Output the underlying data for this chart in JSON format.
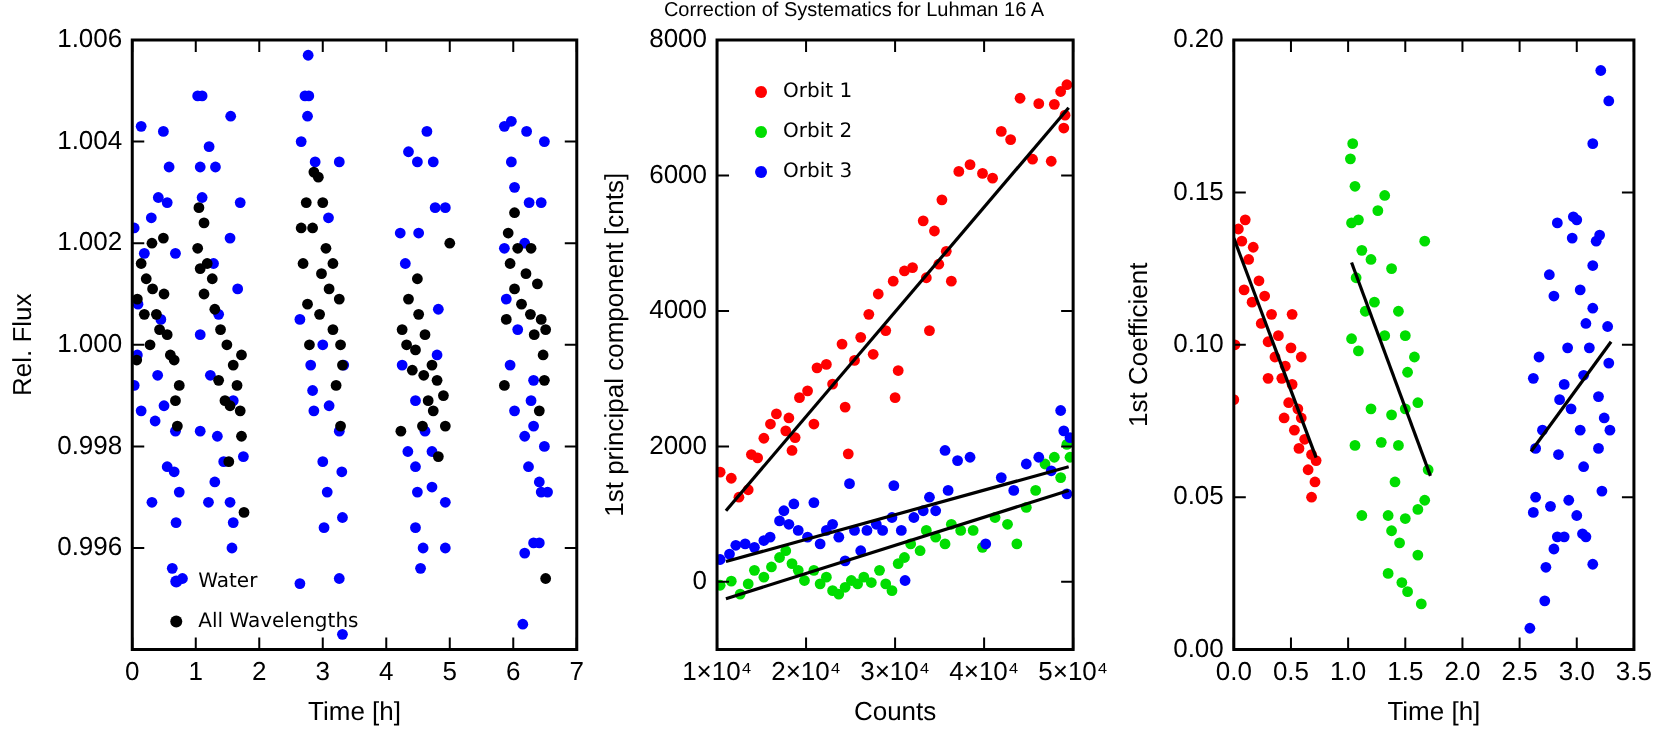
{
  "chart_data": [
    {
      "type": "scatter",
      "xlabel": "Time [h]",
      "ylabel": "Rel. Flux",
      "xlim": [
        0,
        7
      ],
      "xticks": [
        0,
        1,
        2,
        3,
        4,
        5,
        6,
        7
      ],
      "ylim": [
        0.994,
        1.006
      ],
      "yticks": [
        {
          "value": 0.996,
          "label": "0.996"
        },
        {
          "value": 0.998,
          "label": "0.998"
        },
        {
          "value": 1.0,
          "label": "1.000"
        },
        {
          "value": 1.002,
          "label": "1.002"
        },
        {
          "value": 1.004,
          "label": "1.004"
        },
        {
          "value": 1.006,
          "label": "1.006"
        }
      ],
      "grid": false,
      "legend": "bottom left",
      "marker": "circle",
      "series": [
        {
          "name": "Water",
          "color": "#0000ff",
          "x": [
            0.14,
            0.49,
            0.58,
            0.41,
            0.3,
            0.03,
            0.68,
            0.09,
            0.45,
            0.08,
            0.4,
            0.14,
            0.36,
            0.55,
            0.66,
            0.74,
            0.31,
            0.69,
            0.63,
            0.79,
            0.03,
            0.5,
            0.68,
            0.19,
            0.55,
            1.03,
            1.1,
            1.55,
            1.21,
            1.07,
            1.31,
            1.1,
            1.7,
            1.54,
            1.28,
            1.66,
            1.36,
            1.07,
            1.23,
            1.59,
            1.07,
            1.34,
            1.3,
            1.2,
            1.54,
            1.59,
            1.57,
            1.44,
            1.75,
            2.77,
            2.72,
            2.78,
            2.66,
            2.76,
            3.26,
            2.88,
            3.09,
            2.64,
            2.81,
            3.0,
            3.33,
            2.86,
            3.26,
            3.0,
            3.3,
            3.07,
            3.02,
            3.31,
            2.64,
            3.26,
            3.31,
            2.84,
            3.1,
            4.35,
            4.49,
            4.64,
            4.74,
            4.22,
            4.51,
            4.77,
            4.93,
            4.3,
            4.82,
            4.25,
            4.46,
            4.61,
            4.34,
            4.72,
            4.46,
            4.49,
            4.93,
            4.72,
            4.46,
            4.58,
            4.54,
            4.93,
            4.8,
            5.86,
            5.97,
            6.21,
            6.49,
            5.97,
            6.02,
            6.25,
            6.44,
            5.86,
            6.18,
            5.89,
            6.07,
            5.95,
            6.28,
            6.02,
            6.32,
            6.18,
            6.49,
            6.24,
            6.41,
            6.44,
            6.18,
            6.32,
            6.41,
            6.54,
            6.15,
            6.32
          ],
          "values": [
            1.0043,
            1.0042,
            1.0035,
            1.0029,
            1.0025,
            1.0023,
            1.0018,
            1.0008,
            1.0005,
            0.9998,
            0.9994,
            0.9987,
            0.9985,
            0.9976,
            0.9975,
            0.9971,
            0.9969,
            0.9965,
            0.9956,
            0.9954,
            0.9992,
            0.9988,
            0.9983,
            1.0018,
            1.0028,
            1.0049,
            1.0049,
            1.0045,
            1.0039,
            1.0035,
            1.0035,
            1.0029,
            1.0028,
            1.0021,
            1.0016,
            1.0011,
            1.0006,
            1.0002,
            0.9994,
            0.9989,
            0.9983,
            0.9982,
            0.9973,
            0.9969,
            0.9969,
            0.9965,
            0.996,
            0.9977,
            0.9978,
            1.0057,
            1.0049,
            1.0049,
            1.004,
            1.0045,
            1.0036,
            1.0036,
            1.0025,
            1.0005,
            0.9996,
            1.0,
            0.9996,
            0.9987,
            0.9983,
            0.9977,
            0.9975,
            0.9971,
            0.9964,
            0.9966,
            0.9953,
            0.9954,
            0.9943,
            0.9991,
            0.9988,
            1.0038,
            1.0036,
            1.0042,
            1.0036,
            1.0022,
            1.0022,
            1.0027,
            1.0027,
            1.0016,
            1.0007,
            0.9996,
            0.9989,
            0.9983,
            0.9979,
            0.9979,
            0.9976,
            0.9971,
            0.9969,
            0.9972,
            0.9964,
            0.996,
            0.9956,
            0.996,
            0.9998,
            1.0043,
            1.0044,
            1.0042,
            1.004,
            1.0036,
            1.0031,
            1.0028,
            1.0028,
            1.0019,
            1.002,
            1.0009,
            1.0003,
            0.9996,
            0.9989,
            0.9987,
            0.9984,
            0.9982,
            0.998,
            0.9976,
            0.9973,
            0.9971,
            0.9959,
            0.9961,
            0.9961,
            0.9971,
            0.9945,
            0.9993
          ]
        },
        {
          "name": "All Wavelengths",
          "color": "#000000",
          "x": [
            0.14,
            0.31,
            0.49,
            0.08,
            0.19,
            0.32,
            0.43,
            0.55,
            0.6,
            0.66,
            0.07,
            0.28,
            0.38,
            0.68,
            0.74,
            0.71,
            0.5,
            0.22,
            1.05,
            1.13,
            1.03,
            1.18,
            1.26,
            1.13,
            1.3,
            1.39,
            1.49,
            1.59,
            1.72,
            1.65,
            1.54,
            1.7,
            1.72,
            1.52,
            1.76,
            1.36,
            1.46,
            1.07,
            2.86,
            2.93,
            2.74,
            3.0,
            2.66,
            2.84,
            3.05,
            3.16,
            2.69,
            2.98,
            3.1,
            3.26,
            2.76,
            2.95,
            3.16,
            2.79,
            3.28,
            3.31,
            3.21,
            3.28,
            4.49,
            4.35,
            4.25,
            4.51,
            4.61,
            4.32,
            4.72,
            4.41,
            4.59,
            4.8,
            4.66,
            4.9,
            4.74,
            4.93,
            4.23,
            4.57,
            4.82,
            4.46,
            5.0,
            6.02,
            5.92,
            6.07,
            6.28,
            5.95,
            6.2,
            6.02,
            6.38,
            6.13,
            6.27,
            6.44,
            6.33,
            6.51,
            6.47,
            5.86,
            6.49,
            6.41,
            6.51,
            5.89
          ],
          "values": [
            1.0016,
            1.002,
            1.0021,
            1.0009,
            1.0006,
            1.0011,
            1.0003,
            1.0002,
            0.9998,
            0.9997,
            0.9997,
            1.0,
            1.0006,
            0.9989,
            0.9992,
            0.9984,
            1.001,
            1.0013,
            1.0027,
            1.0024,
            1.0019,
            1.0016,
            1.0013,
            1.001,
            1.0007,
            1.0003,
            1.0,
            0.9996,
            0.9998,
            0.9992,
            0.9988,
            0.9987,
            0.9982,
            0.9977,
            0.9967,
            0.9993,
            0.9989,
            1.0015,
            1.0034,
            1.0033,
            1.0028,
            1.0028,
            1.0023,
            1.0023,
            1.0019,
            1.0016,
            1.0016,
            1.0014,
            1.0011,
            1.0009,
            1.0008,
            1.0006,
            1.0003,
            1.0,
            1.0,
            0.9996,
            0.9992,
            0.9984,
            1.0013,
            1.0009,
            1.0003,
            1.0006,
            1.0002,
            1.0,
            0.9996,
            0.9995,
            0.9994,
            0.9993,
            0.9989,
            0.999,
            0.9987,
            0.9984,
            0.9983,
            0.9984,
            0.9978,
            0.9999,
            1.002,
            1.0026,
            1.0022,
            1.0019,
            1.0019,
            1.0016,
            1.0014,
            1.0011,
            1.0012,
            1.0008,
            1.0006,
            1.0005,
            1.0002,
            1.0003,
            0.9998,
            0.9992,
            0.9993,
            0.9987,
            0.9954,
            1.0005
          ]
        }
      ]
    },
    {
      "type": "scatter",
      "title": "Correction of Systematics for Luhman 16 A",
      "xlabel": "Counts",
      "ylabel": "1st principal component [cnts]",
      "xlim": [
        10000,
        50000
      ],
      "xticks": [
        {
          "value": 10000,
          "label": "1×10⁴"
        },
        {
          "value": 20000,
          "label": "2×10⁴"
        },
        {
          "value": 30000,
          "label": "3×10⁴"
        },
        {
          "value": 40000,
          "label": "4×10⁴"
        },
        {
          "value": 50000,
          "label": "5×10⁴"
        }
      ],
      "ylim": [
        -1000,
        8000
      ],
      "yticks": [
        0,
        2000,
        4000,
        6000,
        8000
      ],
      "grid": false,
      "legend": "top left",
      "marker": "circle",
      "series": [
        {
          "name": "Orbit 1",
          "color": "#ff0000",
          "x": [
            10350,
            11600,
            12460,
            13500,
            13860,
            14560,
            15260,
            16000,
            16670,
            17720,
            18070,
            18770,
            18420,
            19260,
            20170,
            20880,
            21230,
            22280,
            22980,
            24040,
            24390,
            24740,
            25440,
            26140,
            27050,
            27540,
            28110,
            28950,
            29790,
            30000,
            30350,
            31050,
            31960,
            33160,
            33510,
            33860,
            34420,
            34910,
            35260,
            35750,
            36320,
            37160,
            38420,
            39820,
            40950,
            41930,
            42980,
            44040,
            45440,
            46140,
            47540,
            47890,
            48600,
            48950,
            49300,
            49090
          ],
          "values": [
            1620,
            1530,
            1250,
            1360,
            1880,
            1830,
            2120,
            2330,
            2480,
            2230,
            2420,
            2130,
            1940,
            2720,
            2820,
            2330,
            3160,
            3210,
            2920,
            3510,
            2580,
            1890,
            3270,
            3610,
            3950,
            3360,
            4250,
            3710,
            4440,
            2720,
            3120,
            4590,
            4640,
            5330,
            4490,
            3710,
            5180,
            4690,
            5640,
            4880,
            4440,
            6060,
            6160,
            6030,
            5960,
            6650,
            6530,
            7140,
            6240,
            7060,
            6210,
            7050,
            7240,
            6700,
            7340,
            6890
          ]
        },
        {
          "name": "Orbit 2",
          "color": "#00dd00",
          "x": [
            10350,
            11600,
            12600,
            13500,
            14200,
            15260,
            16110,
            17020,
            17720,
            18420,
            19120,
            19820,
            20880,
            21580,
            22280,
            22980,
            23680,
            24390,
            25090,
            25790,
            26490,
            27330,
            28250,
            28950,
            29650,
            30350,
            31050,
            31750,
            32810,
            33510,
            34560,
            35610,
            36320,
            37370,
            38770,
            39820,
            41230,
            42630,
            43680,
            44740,
            45790,
            46840,
            47890,
            48600,
            49300,
            49650
          ],
          "values": [
            -50,
            10,
            -180,
            -30,
            170,
            70,
            220,
            360,
            460,
            270,
            170,
            20,
            170,
            -30,
            70,
            -130,
            -180,
            -80,
            20,
            -30,
            70,
            -10,
            170,
            -30,
            -130,
            270,
            360,
            560,
            460,
            760,
            660,
            560,
            850,
            760,
            760,
            510,
            950,
            850,
            560,
            1100,
            1350,
            1740,
            1840,
            1540,
            2030,
            1840
          ]
        },
        {
          "name": "Orbit 3",
          "color": "#0000ff",
          "x": [
            10350,
            11400,
            12110,
            13160,
            14200,
            15260,
            15960,
            17020,
            17510,
            18070,
            18630,
            19120,
            20170,
            20880,
            21580,
            22280,
            22980,
            23680,
            24390,
            24880,
            25440,
            26140,
            26840,
            27890,
            28600,
            29650,
            29860,
            30700,
            31120,
            32110,
            33160,
            33860,
            34560,
            35610,
            35960,
            37020,
            38420,
            40180,
            41930,
            43330,
            44740,
            46140,
            47540,
            48600,
            48950,
            49300,
            49650
          ],
          "values": [
            330,
            410,
            540,
            560,
            510,
            610,
            660,
            900,
            1050,
            850,
            1150,
            760,
            660,
            1170,
            560,
            760,
            850,
            660,
            310,
            1450,
            760,
            460,
            760,
            850,
            760,
            950,
            1420,
            760,
            20,
            950,
            1050,
            1250,
            1050,
            1940,
            1350,
            1790,
            1840,
            560,
            1540,
            1350,
            1740,
            1840,
            1640,
            2530,
            2230,
            1300,
            2130
          ]
        },
        {
          "type": "line",
          "marker": "none",
          "color": "#000000",
          "x": [
            11000,
            49500
          ],
          "values": [
            1050,
            7000
          ]
        },
        {
          "type": "line",
          "marker": "none",
          "color": "#000000",
          "x": [
            11000,
            49500
          ],
          "values": [
            -250,
            1350
          ]
        },
        {
          "type": "line",
          "marker": "none",
          "color": "#000000",
          "x": [
            11000,
            49500
          ],
          "values": [
            300,
            1700
          ]
        }
      ]
    },
    {
      "type": "scatter",
      "xlabel": "Time [h]",
      "ylabel": "1st Coefficient",
      "xlim": [
        0,
        3.5
      ],
      "xticks": [
        {
          "value": 0,
          "label": "0.0"
        },
        {
          "value": 0.5,
          "label": "0.5"
        },
        {
          "value": 1,
          "label": "1.0"
        },
        {
          "value": 1.5,
          "label": "1.5"
        },
        {
          "value": 2,
          "label": "2.0"
        },
        {
          "value": 2.5,
          "label": "2.5"
        },
        {
          "value": 3,
          "label": "3.0"
        },
        {
          "value": 3.5,
          "label": "3.5"
        }
      ],
      "ylim": [
        0,
        0.2
      ],
      "yticks": [
        {
          "value": 0,
          "label": "0.00"
        },
        {
          "value": 0.05,
          "label": "0.05"
        },
        {
          "value": 0.1,
          "label": "0.10"
        },
        {
          "value": 0.15,
          "label": "0.15"
        },
        {
          "value": 0.2,
          "label": "0.20"
        }
      ],
      "grid": false,
      "marker": "circle",
      "series": [
        {
          "color": "#ff0000",
          "x": [
            0,
            0.01,
            0.04,
            0.1,
            0.07,
            0.13,
            0.17,
            0.22,
            0.09,
            0.16,
            0.27,
            0.24,
            0.33,
            0.3,
            0.39,
            0.36,
            0.45,
            0.42,
            0.3,
            0.51,
            0.51,
            0.48,
            0.56,
            0.44,
            0.53,
            0.59,
            0.62,
            0.57,
            0.68,
            0.65,
            0.71,
            0.68,
            0.72,
            0.59,
            0.5
          ],
          "values": [
            0.082,
            0.1,
            0.138,
            0.141,
            0.134,
            0.128,
            0.132,
            0.121,
            0.118,
            0.114,
            0.116,
            0.107,
            0.11,
            0.101,
            0.103,
            0.096,
            0.093,
            0.089,
            0.089,
            0.11,
            0.087,
            0.081,
            0.079,
            0.076,
            0.072,
            0.076,
            0.069,
            0.066,
            0.064,
            0.059,
            0.055,
            0.05,
            0.062,
            0.096,
            0.099
          ]
        },
        {
          "color": "#00dd00",
          "x": [
            1.02,
            1.04,
            1.06,
            1.09,
            1.03,
            1.12,
            1.07,
            1.03,
            1.09,
            1.15,
            1.2,
            1.26,
            1.32,
            1.23,
            1.32,
            1.38,
            1.44,
            1.5,
            1.52,
            1.5,
            1.2,
            1.29,
            1.38,
            1.44,
            1.41,
            1.35,
            1.38,
            1.5,
            1.45,
            1.35,
            1.47,
            1.52,
            1.61,
            1.64,
            1.67,
            1.61,
            1.7,
            1.67,
            1.61,
            1.12,
            1.58,
            1.06
          ],
          "values": [
            0.161,
            0.166,
            0.152,
            0.141,
            0.14,
            0.131,
            0.122,
            0.102,
            0.098,
            0.111,
            0.128,
            0.144,
            0.149,
            0.114,
            0.103,
            0.125,
            0.111,
            0.103,
            0.091,
            0.079,
            0.079,
            0.068,
            0.077,
            0.067,
            0.055,
            0.044,
            0.039,
            0.043,
            0.035,
            0.025,
            0.022,
            0.019,
            0.031,
            0.015,
            0.049,
            0.046,
            0.059,
            0.134,
            0.081,
            0.044,
            0.096,
            0.067
          ]
        },
        {
          "color": "#0000ff",
          "x": [
            2.59,
            2.62,
            2.64,
            2.64,
            2.62,
            2.67,
            2.7,
            2.73,
            2.72,
            2.8,
            2.83,
            2.84,
            2.85,
            2.83,
            2.76,
            2.8,
            2.89,
            2.92,
            2.93,
            2.96,
            2.97,
            3.0,
            3.03,
            3.03,
            3.06,
            3.0,
            3.05,
            3.08,
            3.06,
            3.11,
            3.14,
            3.14,
            3.17,
            3.2,
            3.19,
            3.22,
            3.24,
            3.21,
            3.28,
            3.14,
            3.27,
            3.28,
            3.29,
            3.19,
            3.14,
            3.08,
            2.89,
            2.77,
            2.95
          ],
          "values": [
            0.007,
            0.045,
            0.05,
            0.066,
            0.089,
            0.096,
            0.072,
            0.027,
            0.016,
            0.033,
            0.037,
            0.064,
            0.082,
            0.14,
            0.123,
            0.116,
            0.037,
            0.099,
            0.049,
            0.135,
            0.142,
            0.141,
            0.118,
            0.072,
            0.09,
            0.044,
            0.038,
            0.037,
            0.06,
            0.099,
            0.126,
            0.028,
            0.134,
            0.136,
            0.083,
            0.052,
            0.076,
            0.19,
            0.18,
            0.166,
            0.106,
            0.094,
            0.072,
            0.066,
            0.112,
            0.107,
            0.087,
            0.047,
            0.079
          ]
        },
        {
          "type": "line",
          "marker": "none",
          "color": "#000000",
          "x": [
            0,
            0.72
          ],
          "values": [
            0.135,
            0.063
          ]
        },
        {
          "type": "line",
          "marker": "none",
          "color": "#000000",
          "x": [
            1.03,
            1.72
          ],
          "values": [
            0.127,
            0.057
          ]
        },
        {
          "type": "line",
          "marker": "none",
          "color": "#000000",
          "x": [
            2.6,
            3.3
          ],
          "values": [
            0.065,
            0.101
          ]
        }
      ]
    }
  ]
}
